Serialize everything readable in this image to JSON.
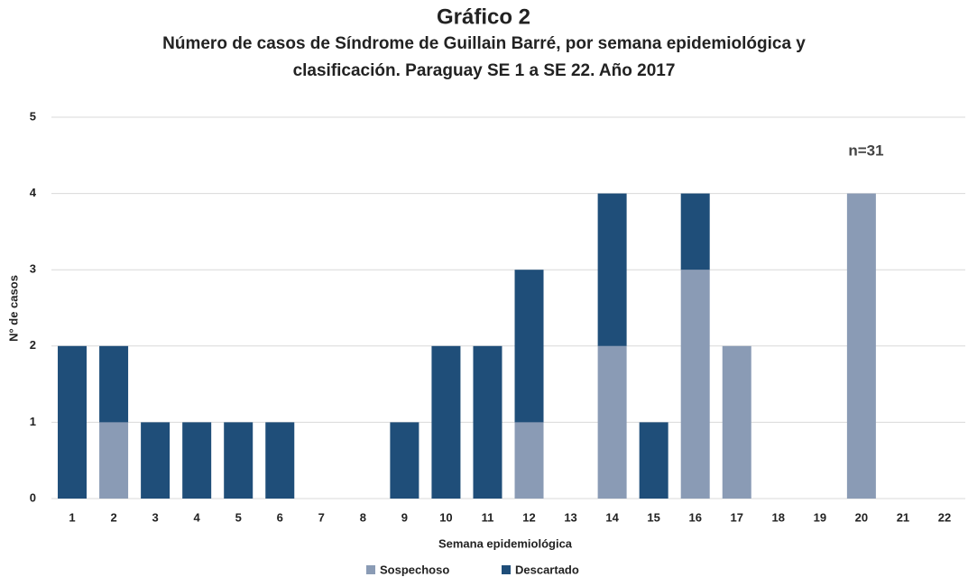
{
  "chart_data": {
    "type": "stacked_bar",
    "title": "Gráfico 2",
    "subtitle": "Número de casos de Síndrome de Guillain Barré, por  semana epidemiológica  y clasificación. Paraguay SE 1 a SE 22. Año 2017",
    "x_label": "Semana epidemiológica",
    "y_label": "N° de casos",
    "annotation": "n=31",
    "categories": [
      "1",
      "2",
      "3",
      "4",
      "5",
      "6",
      "7",
      "8",
      "9",
      "10",
      "11",
      "12",
      "13",
      "14",
      "15",
      "16",
      "17",
      "18",
      "19",
      "20",
      "21",
      "22"
    ],
    "series": [
      {
        "name": "Sospechoso",
        "color": "#8a9bb5",
        "values": [
          0,
          1,
          0,
          0,
          0,
          0,
          0,
          0,
          0,
          0,
          0,
          1,
          0,
          2,
          0,
          3,
          2,
          0,
          0,
          4,
          0,
          0
        ]
      },
      {
        "name": "Descartado",
        "color": "#1f4e79",
        "values": [
          2,
          1,
          1,
          1,
          1,
          1,
          0,
          0,
          1,
          2,
          2,
          2,
          0,
          2,
          1,
          1,
          0,
          0,
          0,
          0,
          0,
          0
        ]
      }
    ],
    "ylim": [
      0,
      5
    ],
    "yticks": [
      0,
      1,
      2,
      3,
      4,
      5
    ],
    "grid": true,
    "legend": "bottom"
  }
}
